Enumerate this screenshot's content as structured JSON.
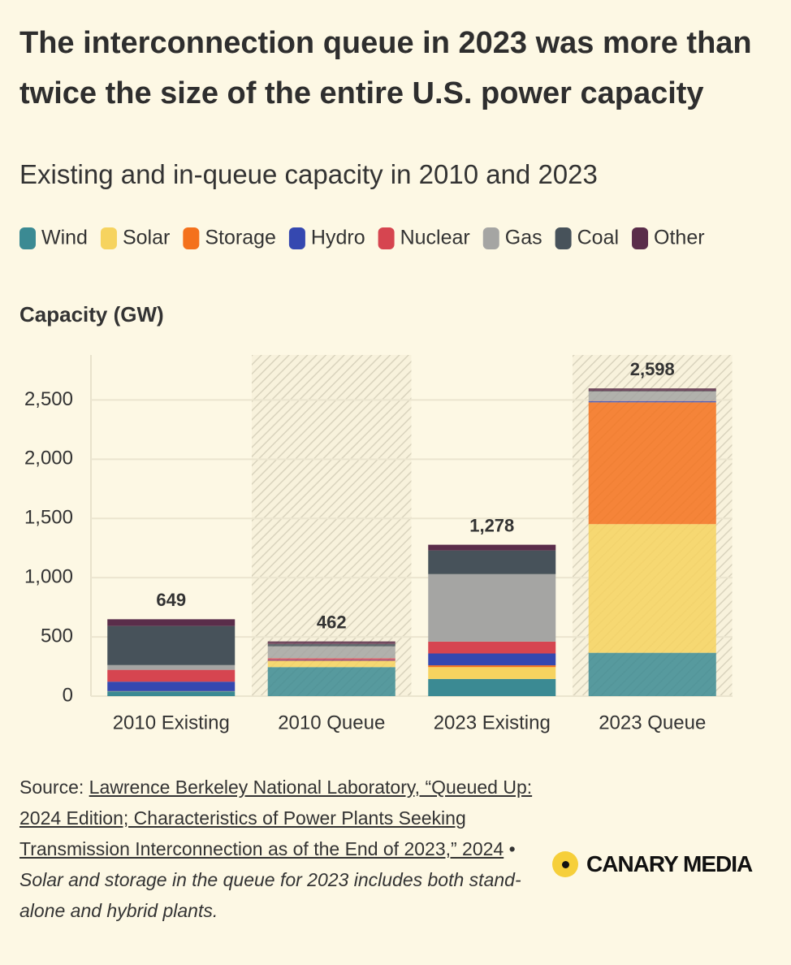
{
  "chart_data": {
    "type": "stacked_bar",
    "title": "The interconnection queue in 2023 was more than twice the size of the entire U.S. power capacity",
    "subtitle": "Existing and in-queue capacity in 2010 and 2023",
    "y_label": "Capacity (GW)",
    "categories": [
      "2010 Existing",
      "2010 Queue",
      "2023 Existing",
      "2023 Queue"
    ],
    "hatched": [
      false,
      true,
      false,
      true
    ],
    "series": [
      {
        "name": "Wind",
        "color": "#3b8a93",
        "values": [
          40,
          245,
          145,
          366
        ]
      },
      {
        "name": "Solar",
        "color": "#f6d35f",
        "values": [
          1,
          50,
          100,
          1086
        ]
      },
      {
        "name": "Storage",
        "color": "#f4711c",
        "values": [
          1,
          5,
          15,
          1028
        ]
      },
      {
        "name": "Hydro",
        "color": "#3548b0",
        "values": [
          80,
          5,
          100,
          10
        ]
      },
      {
        "name": "Nuclear",
        "color": "#d64550",
        "values": [
          100,
          15,
          100,
          2
        ]
      },
      {
        "name": "Gas",
        "color": "#a5a5a3",
        "values": [
          40,
          100,
          570,
          79
        ]
      },
      {
        "name": "Coal",
        "color": "#47525a",
        "values": [
          330,
          20,
          200,
          5
        ]
      },
      {
        "name": "Other",
        "color": "#5a2d4a",
        "values": [
          57,
          22,
          48,
          22
        ]
      }
    ],
    "totals": [
      649,
      462,
      1278,
      2598
    ],
    "total_labels": [
      "649",
      "462",
      "1,278",
      "2,598"
    ],
    "ylim": [
      0,
      2880
    ],
    "yticks": [
      0,
      500,
      {
        "value": 1000,
        "label": "1,000"
      },
      {
        "value": 1500,
        "label": "1,500"
      },
      {
        "value": 2000,
        "label": "2,000"
      },
      {
        "value": 2500,
        "label": "2,500"
      }
    ],
    "grid": true
  },
  "footer": {
    "source_prefix": "Source:",
    "source_link": "Lawrence Berkeley National Laboratory, “Queued Up: 2024 Edition; Characteristics of Power Plants Seeking Transmission Interconnection as of the End of 2023,” 2024",
    "separator": "•",
    "note": "Solar and storage in the queue for 2023 includes both stand-alone and hybrid plants.",
    "logo": "CANARY MEDIA"
  }
}
